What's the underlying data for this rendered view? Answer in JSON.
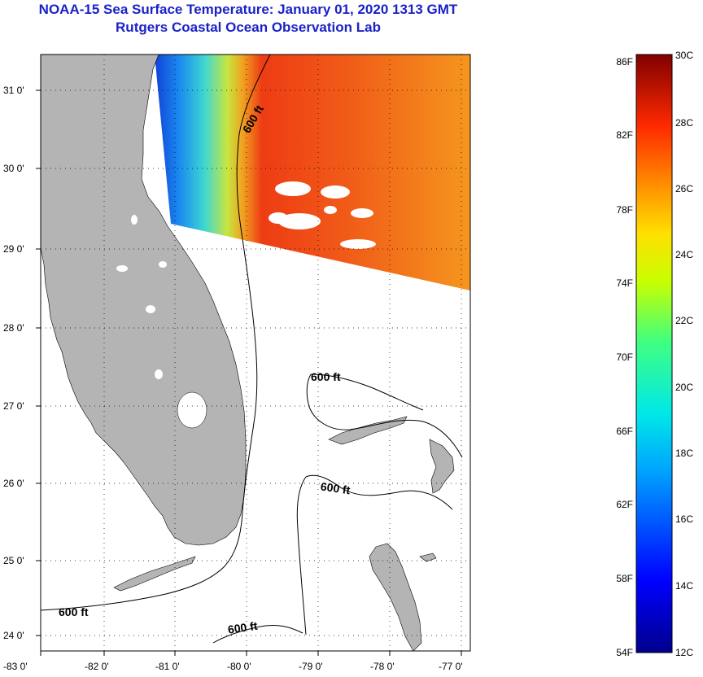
{
  "title": {
    "line1": "NOAA-15 Sea Surface Temperature:  January 01, 2020 1313 GMT",
    "line2": "Rutgers Coastal Ocean Observation Lab"
  },
  "map": {
    "lat_labels": [
      "31 0'",
      "30 0'",
      "29 0'",
      "28 0'",
      "27 0'",
      "26 0'",
      "25 0'",
      "24 0'"
    ],
    "lon_labels": [
      "-83 0'",
      "-82 0'",
      "-81 0'",
      "-80 0'",
      "-79 0'",
      "-78 0'",
      "-77 0'"
    ],
    "contour_labels": [
      "600 ft",
      "600 ft",
      "600 ft",
      "600 ft",
      "600 ft"
    ]
  },
  "colorbar": {
    "fahrenheit": [
      "86F",
      "82F",
      "78F",
      "74F",
      "70F",
      "66F",
      "62F",
      "58F",
      "54F"
    ],
    "celsius": [
      "30C",
      "28C",
      "26C",
      "24C",
      "22C",
      "20C",
      "18C",
      "16C",
      "14C",
      "12C"
    ]
  },
  "colors": {
    "title": "#1a22c8",
    "land": "#b4b4b4",
    "ocean_nodata": "#ffffff"
  }
}
